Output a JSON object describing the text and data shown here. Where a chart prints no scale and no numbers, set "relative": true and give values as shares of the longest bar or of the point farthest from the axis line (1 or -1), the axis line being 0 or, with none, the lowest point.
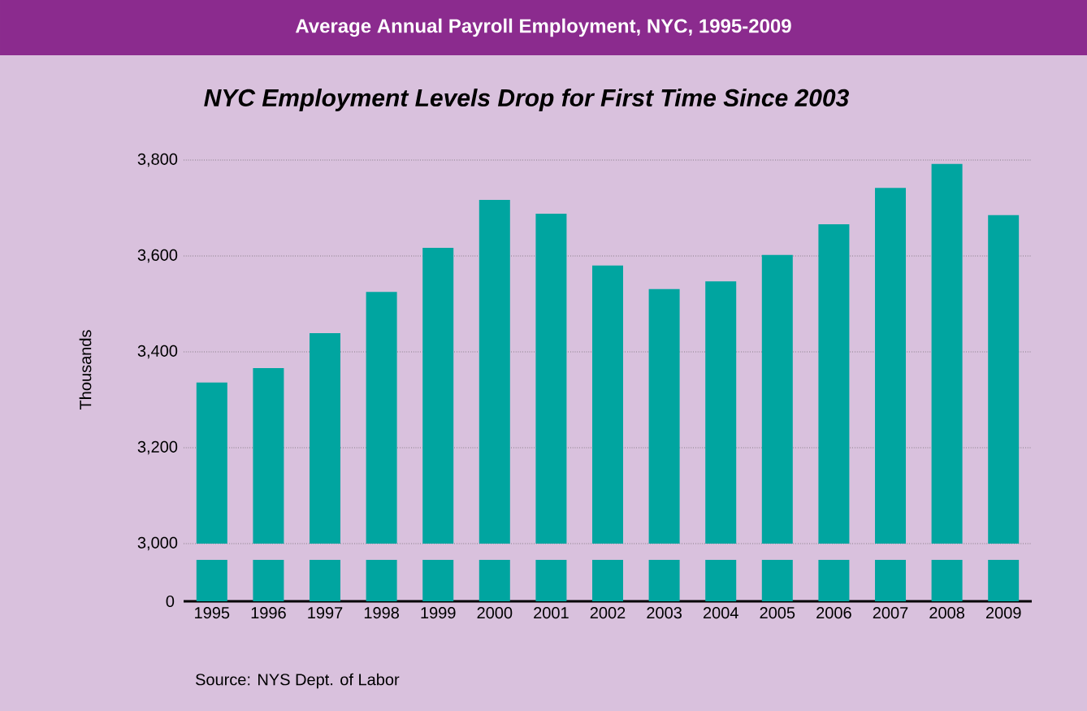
{
  "chart_data": [
    {
      "type": "bar",
      "title": "Average Annual Payroll Employment, NYC, 1995-2009",
      "subtitle": "NYC Employment Levels Drop for First Time Since 2003",
      "ylabel": "Thousands",
      "categories": [
        "1995",
        "1996",
        "1997",
        "1998",
        "1999",
        "2000",
        "2001",
        "2002",
        "2003",
        "2004",
        "2005",
        "2006",
        "2007",
        "2008",
        "2009"
      ],
      "values": [
        3336,
        3366,
        3439,
        3525,
        3617,
        3717,
        3688,
        3580,
        3531,
        3547,
        3602,
        3666,
        3742,
        3792,
        3685
      ],
      "color": "#00a5a0",
      "ylim": [
        3000,
        3800
      ],
      "yticks": [
        {
          "value": 3000,
          "label": "3,000"
        },
        {
          "value": 3200,
          "label": "3,200"
        },
        {
          "value": 3400,
          "label": "3,400"
        },
        {
          "value": 3600,
          "label": "3,600"
        },
        {
          "value": 3800,
          "label": "3,800"
        }
      ],
      "grid": "y",
      "tick_labels": "y"
    },
    {
      "type": "bar",
      "relative": true,
      "categories": [
        "1995",
        "1996",
        "1997",
        "1998",
        "1999",
        "2000",
        "2001",
        "2002",
        "2003",
        "2004",
        "2005",
        "2006",
        "2007",
        "2008",
        "2009"
      ],
      "values": [
        1,
        1,
        1,
        1,
        1,
        1,
        1,
        1,
        1,
        1,
        1,
        1,
        1,
        1,
        1
      ],
      "color": "#00a5a0",
      "annotations": [
        "0",
        "Source: NYS Dept. of Labor"
      ]
    }
  ]
}
